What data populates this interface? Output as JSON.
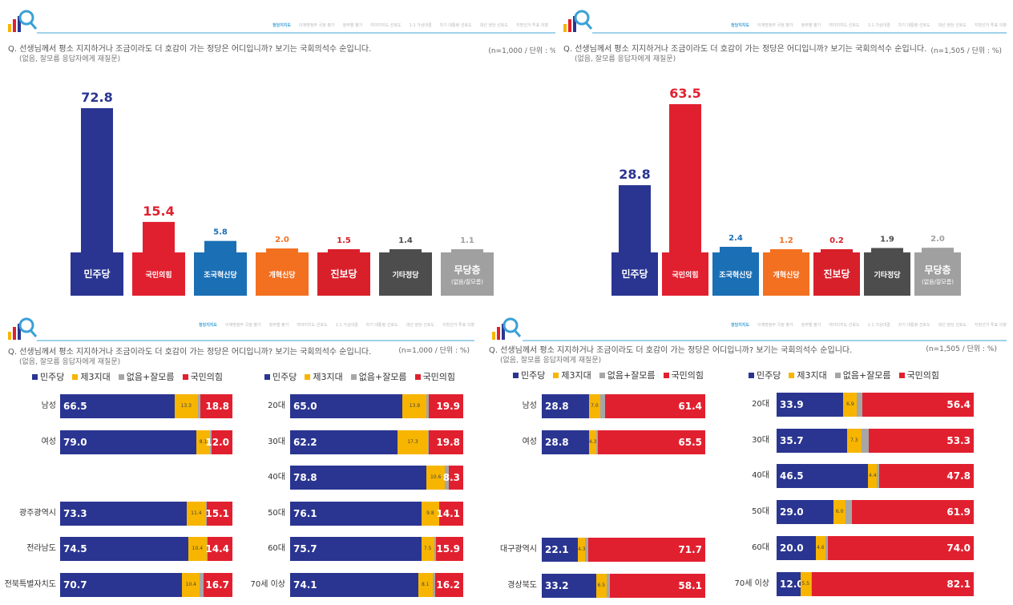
{
  "nav_items": [
    "정당지지도",
    "이재명정부 국정 평가",
    "정부별 평가",
    "여야지지도 선호도",
    "1:1 가상대결",
    "차기 대통령 선호도",
    "대선 정당 선호도",
    "지방선거 투표 의향"
  ],
  "brand": {
    "blue": "#2a3591",
    "yellow": "#f7b500",
    "gray": "#a6a6a6",
    "red": "#e1202f",
    "jo_blue": "#1b6fb5",
    "orange": "#f37021",
    "jinbo": "#d8202b",
    "etc": "#4d4d4d",
    "none": "#a0a0a0",
    "accent": "#3aa0d6"
  },
  "panels": [
    {
      "question": "Q. 선생님께서 평소 지지하거나 조금이라도 더 호감이 가는 정당은 어디입니까? 보기는 국회의석수 순입니다.",
      "question_sub": "(없음, 잘모름 응답자에게 재질문)",
      "n_unit": "(n=1,000 / 단위 : %)",
      "chart_data": {
        "type": "bar",
        "categories": [
          "민주당",
          "국민의힘",
          "조국혁신당",
          "개혁신당",
          "진보당",
          "기타정당",
          "무당층"
        ],
        "category_sub": [
          "",
          "",
          "",
          "",
          "",
          "",
          "(없음/잘모름)"
        ],
        "values": [
          72.8,
          15.4,
          5.8,
          2.0,
          1.5,
          1.4,
          1.1
        ],
        "colors": [
          "#2a3591",
          "#e1202f",
          "#1b6fb5",
          "#f37021",
          "#d8202b",
          "#4d4d4d",
          "#a0a0a0"
        ],
        "ylim": [
          0,
          80
        ]
      }
    },
    {
      "question": "Q. 선생님께서 평소 지지하거나 조금이라도 더 호감이 가는 정당은 어디입니까? 보기는 국회의석수 순입니다.",
      "question_sub": "(없음, 잘모름 응답자에게 재질문)",
      "n_unit": "(n=1,505 / 단위 : %)",
      "chart_data": {
        "type": "bar",
        "categories": [
          "민주당",
          "국민의힘",
          "조국혁신당",
          "개혁신당",
          "진보당",
          "기타정당",
          "무당층"
        ],
        "category_sub": [
          "",
          "",
          "",
          "",
          "",
          "",
          "(없음/잘모름)"
        ],
        "values": [
          28.8,
          63.5,
          2.4,
          1.2,
          0.2,
          1.9,
          2.0
        ],
        "colors": [
          "#2a3591",
          "#e1202f",
          "#1b6fb5",
          "#f37021",
          "#d8202b",
          "#4d4d4d",
          "#a0a0a0"
        ],
        "ylim": [
          0,
          80
        ]
      }
    },
    {
      "question": "Q. 선생님께서 평소 지지하거나 조금이라도 더 호감이 가는 정당은 어디입니까? 보기는 국회의석수 순입니다.",
      "question_sub": "(없음, 잘모름 응답자에게 재질문)",
      "n_unit": "(n=1,000 / 단위 : %)",
      "legend": [
        "민주당",
        "제3지대",
        "없음+잘모름",
        "국민의힘"
      ],
      "chart_data": [
        {
          "type": "bar",
          "stacked": true,
          "orientation": "horizontal",
          "categories": [
            "남성",
            "여성",
            "광주광역시",
            "전라남도",
            "전북특별자치도"
          ],
          "series": [
            {
              "name": "민주당",
              "values": [
                66.5,
                79.0,
                73.3,
                74.5,
                70.7
              ]
            },
            {
              "name": "제3지대",
              "values": [
                13.3,
                8.1,
                11.4,
                10.4,
                10.4
              ]
            },
            {
              "name": "없음+잘모름",
              "values": [
                1.4,
                0.9,
                0.2,
                0.7,
                2.2
              ]
            },
            {
              "name": "국민의힘",
              "values": [
                18.8,
                12.0,
                15.1,
                14.4,
                16.7
              ]
            }
          ]
        },
        {
          "type": "bar",
          "stacked": true,
          "orientation": "horizontal",
          "categories": [
            "20대",
            "30대",
            "40대",
            "50대",
            "60대",
            "70세 이상"
          ],
          "series": [
            {
              "name": "민주당",
              "values": [
                65.0,
                62.2,
                78.8,
                76.1,
                75.7,
                74.1
              ]
            },
            {
              "name": "제3지대",
              "values": [
                13.9,
                17.3,
                10.6,
                9.8,
                7.5,
                8.1
              ]
            },
            {
              "name": "없음+잘모름",
              "values": [
                1.2,
                0.7,
                2.3,
                0.0,
                0.9,
                1.6
              ]
            },
            {
              "name": "국민의힘",
              "values": [
                19.9,
                19.8,
                8.3,
                14.1,
                15.9,
                16.2
              ]
            }
          ]
        }
      ]
    },
    {
      "question": "Q. 선생님께서 평소 지지하거나 조금이라도 더 호감이 가는 정당은 어디입니까? 보기는 국회의석수 순입니다.",
      "question_sub": "(없음, 잘모름 응답자에게 재질문)",
      "n_unit": "(n=1,505 / 단위 : %)",
      "legend": [
        "민주당",
        "제3지대",
        "없음+잘모름",
        "국민의힘"
      ],
      "chart_data": [
        {
          "type": "bar",
          "stacked": true,
          "orientation": "horizontal",
          "categories": [
            "남성",
            "여성",
            "대구광역시",
            "경상북도"
          ],
          "series": [
            {
              "name": "민주당",
              "values": [
                28.8,
                28.8,
                22.1,
                33.2
              ]
            },
            {
              "name": "제3지대",
              "values": [
                7.0,
                4.3,
                4.3,
                6.5
              ]
            },
            {
              "name": "없음+잘모름",
              "values": [
                2.8,
                1.4,
                1.9,
                2.2
              ]
            },
            {
              "name": "국민의힘",
              "values": [
                61.4,
                65.5,
                71.7,
                58.1
              ]
            }
          ]
        },
        {
          "type": "bar",
          "stacked": true,
          "orientation": "horizontal",
          "categories": [
            "20대",
            "30대",
            "40대",
            "50대",
            "60대",
            "70세 이상"
          ],
          "series": [
            {
              "name": "민주당",
              "values": [
                33.9,
                35.7,
                46.5,
                29.0,
                20.0,
                12.0
              ]
            },
            {
              "name": "제3지대",
              "values": [
                6.9,
                7.3,
                4.4,
                6.0,
                4.6,
                5.5
              ]
            },
            {
              "name": "없음+잘모름",
              "values": [
                2.8,
                3.7,
                1.3,
                3.1,
                1.4,
                0.4
              ]
            },
            {
              "name": "국민의힘",
              "values": [
                56.4,
                53.3,
                47.8,
                61.9,
                74.0,
                82.1
              ]
            }
          ]
        }
      ]
    }
  ]
}
